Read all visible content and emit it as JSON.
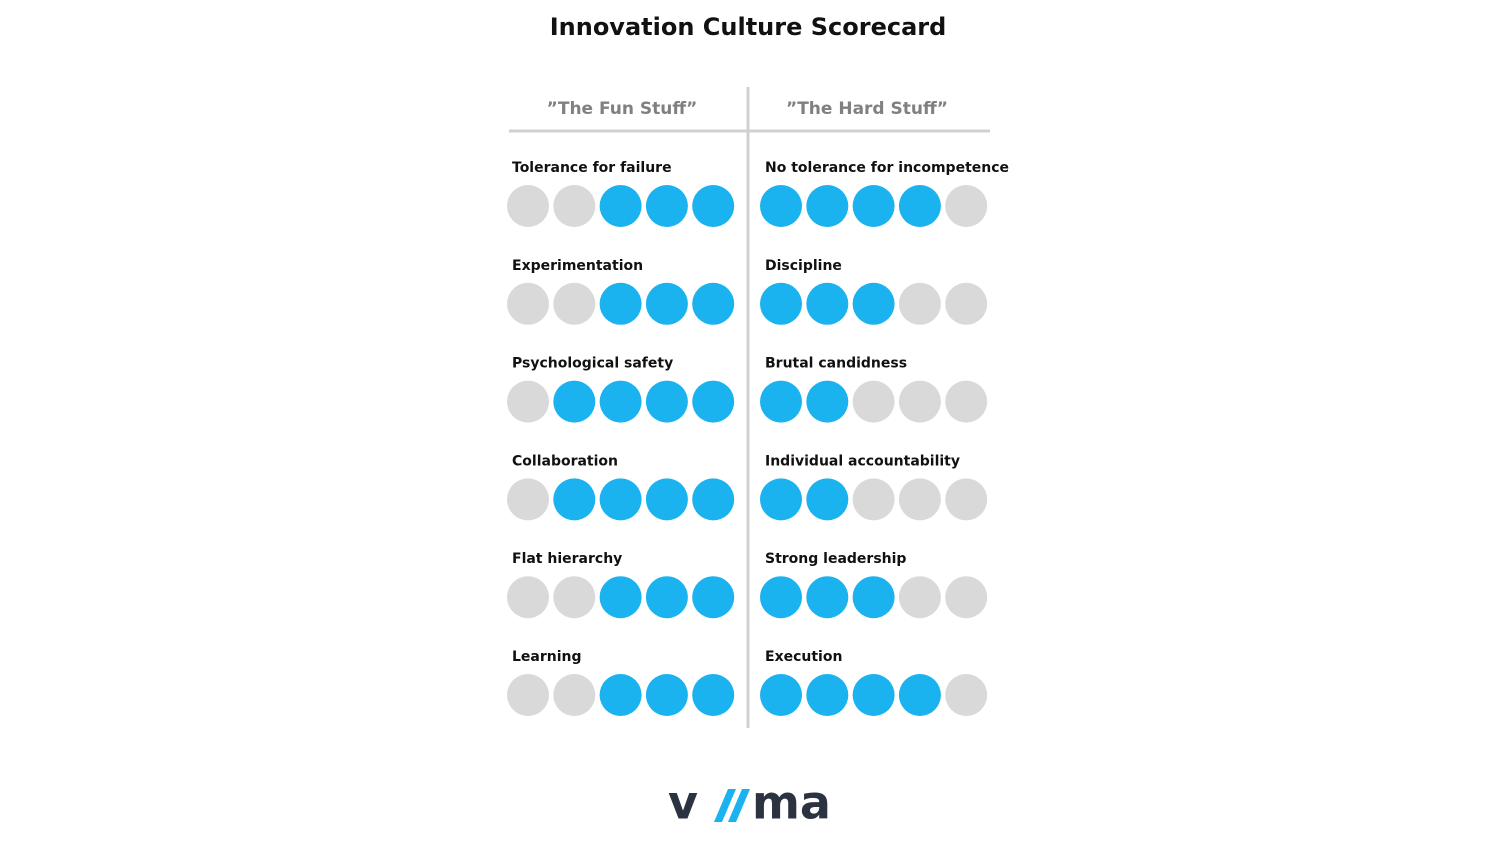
{
  "title": "Innovation Culture Scorecard",
  "max_score": 5,
  "filled_color": "#1ab2ef",
  "empty_color": "#d9d9d9",
  "columns": [
    {
      "heading": "”The Fun Stuff”",
      "fill_from": "right",
      "items": [
        {
          "label": "Tolerance for failure",
          "score": 3
        },
        {
          "label": "Experimentation",
          "score": 3
        },
        {
          "label": "Psychological safety",
          "score": 4
        },
        {
          "label": "Collaboration",
          "score": 4
        },
        {
          "label": "Flat hierarchy",
          "score": 3
        },
        {
          "label": "Learning",
          "score": 3
        }
      ]
    },
    {
      "heading": "”The Hard Stuff”",
      "fill_from": "left",
      "items": [
        {
          "label": "No tolerance for incompetence",
          "score": 4
        },
        {
          "label": "Discipline",
          "score": 3
        },
        {
          "label": "Brutal candidness",
          "score": 2
        },
        {
          "label": "Individual accountability",
          "score": 2
        },
        {
          "label": "Strong leadership",
          "score": 3
        },
        {
          "label": "Execution",
          "score": 4
        }
      ]
    }
  ],
  "logo": {
    "left": "v",
    "right": "ma"
  }
}
